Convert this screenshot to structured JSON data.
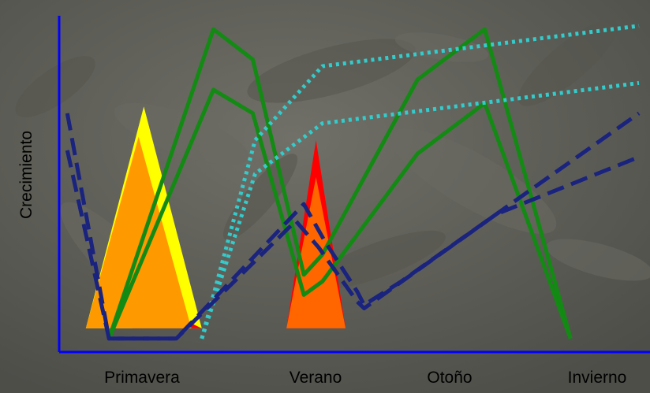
{
  "chart_data": {
    "type": "line",
    "xlabel": "",
    "ylabel": "Crecimiento",
    "categories": [
      "Primavera",
      "Verano",
      "Otoño",
      "Invierno"
    ],
    "grid": false,
    "legend": "none",
    "background": "photo of green leaves (dark, dimmed)",
    "axis_color": "#0000ff",
    "series": [
      {
        "style": "solid",
        "color": "#138a13",
        "points": [
          [
            0.43,
            0.04
          ],
          [
            1.33,
            0.96
          ],
          [
            1.67,
            0.87
          ],
          [
            2.11,
            0.23
          ],
          [
            2.27,
            0.29
          ],
          [
            3.09,
            0.81
          ],
          [
            3.67,
            0.96
          ],
          [
            4.41,
            0.04
          ]
        ]
      },
      {
        "style": "solid",
        "color": "#138a13",
        "points": [
          [
            0.43,
            0.04
          ],
          [
            1.33,
            0.78
          ],
          [
            1.67,
            0.71
          ],
          [
            2.11,
            0.17
          ],
          [
            2.27,
            0.21
          ],
          [
            3.09,
            0.59
          ],
          [
            3.67,
            0.74
          ],
          [
            4.41,
            0.04
          ]
        ]
      },
      {
        "style": "dotted",
        "color": "#33cccc",
        "points": [
          [
            1.23,
            0.04
          ],
          [
            1.69,
            0.63
          ],
          [
            2.27,
            0.85
          ],
          [
            5.0,
            0.97
          ]
        ]
      },
      {
        "style": "dotted",
        "color": "#33cccc",
        "points": [
          [
            1.23,
            0.04
          ],
          [
            1.69,
            0.53
          ],
          [
            2.27,
            0.68
          ],
          [
            5.0,
            0.8
          ]
        ]
      },
      {
        "style": "dashed",
        "color": "#1a237e",
        "points": [
          [
            0.07,
            0.71
          ],
          [
            0.43,
            0.04
          ],
          [
            1.01,
            0.04
          ],
          [
            2.11,
            0.44
          ],
          [
            2.29,
            0.33
          ],
          [
            2.57,
            0.18
          ],
          [
            2.63,
            0.14
          ],
          [
            2.95,
            0.21
          ],
          [
            5.0,
            0.71
          ]
        ]
      },
      {
        "style": "dashed",
        "color": "#1a237e",
        "points": [
          [
            0.07,
            0.6
          ],
          [
            0.43,
            0.04
          ],
          [
            1.01,
            0.04
          ],
          [
            2.04,
            0.39
          ],
          [
            2.24,
            0.31
          ],
          [
            2.57,
            0.15
          ],
          [
            2.63,
            0.13
          ],
          [
            3.77,
            0.41
          ],
          [
            5.0,
            0.58
          ]
        ]
      }
    ],
    "shapes": [
      {
        "kind": "triangle",
        "color": "#ffff00",
        "base": [
          0.23,
          1.23
        ],
        "peak": 0.73
      },
      {
        "kind": "triangle",
        "color": "#ff0000",
        "base": [
          0.63,
          1.23
        ],
        "peak": 0.12
      },
      {
        "kind": "triangle",
        "color": "#ff9900",
        "base": [
          0.23,
          1.14
        ],
        "peak": 0.64
      },
      {
        "kind": "triangle",
        "color": "#ff0000",
        "base": [
          1.96,
          2.47
        ],
        "peak": 0.63
      },
      {
        "kind": "triangle",
        "color": "#ff6600",
        "base": [
          1.96,
          2.47
        ],
        "peak": 0.52
      }
    ]
  }
}
